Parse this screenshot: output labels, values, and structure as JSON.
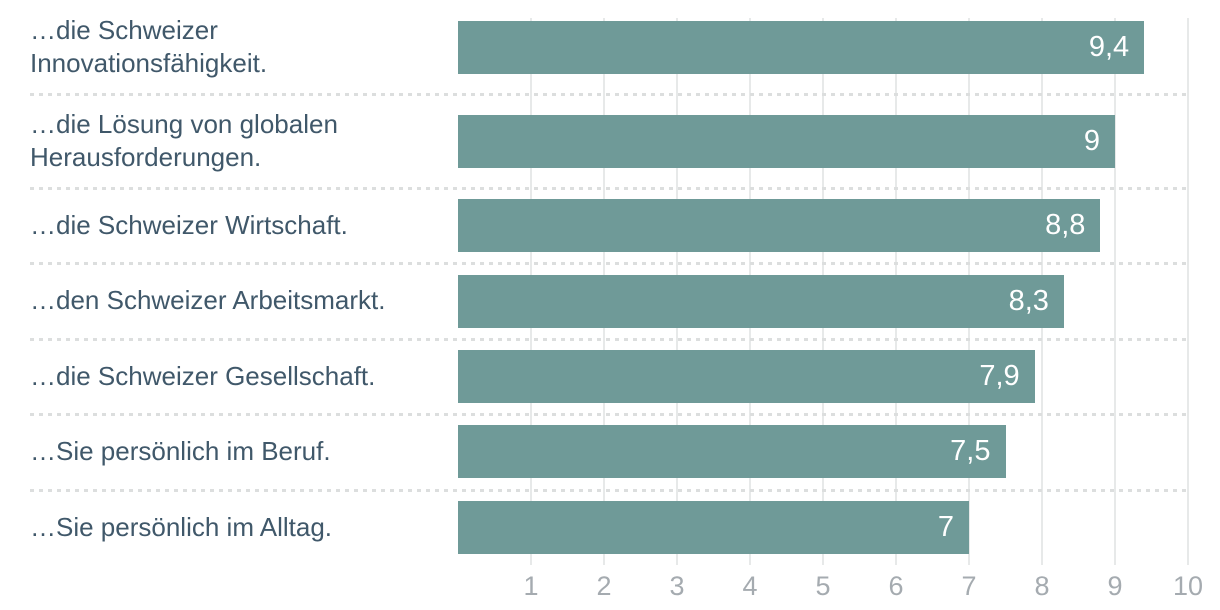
{
  "chart_data": {
    "type": "bar",
    "orientation": "horizontal",
    "title": "",
    "categories": [
      "…die Schweizer Innovationsfähigkeit.",
      "…die Lösung von globalen Herausforderungen.",
      "…die Schweizer Wirtschaft.",
      "…den Schweizer Arbeitsmarkt.",
      "…die Schweizer Gesellschaft.",
      "…Sie persönlich im Beruf.",
      "…Sie persönlich im Alltag."
    ],
    "values": [
      9.4,
      9,
      8.8,
      8.3,
      7.9,
      7.5,
      7
    ],
    "value_labels": [
      "9,4",
      "9",
      "8,8",
      "8,3",
      "7,9",
      "7,5",
      "7"
    ],
    "xlabel": "",
    "ylabel": "",
    "xlim": [
      0,
      10
    ],
    "x_ticks": [
      "1",
      "2",
      "3",
      "4",
      "5",
      "6",
      "7",
      "8",
      "9",
      "10"
    ],
    "grid": "vertical-gridlines-on",
    "legend": "none",
    "colors": {
      "bar": "#6f9a98",
      "category_label": "#40586a",
      "value_label": "#ffffff",
      "tick_label": "#a5abb0",
      "gridline": "#e7e9e9",
      "separator_dots": "#dcdede",
      "background": "#ffffff"
    }
  }
}
